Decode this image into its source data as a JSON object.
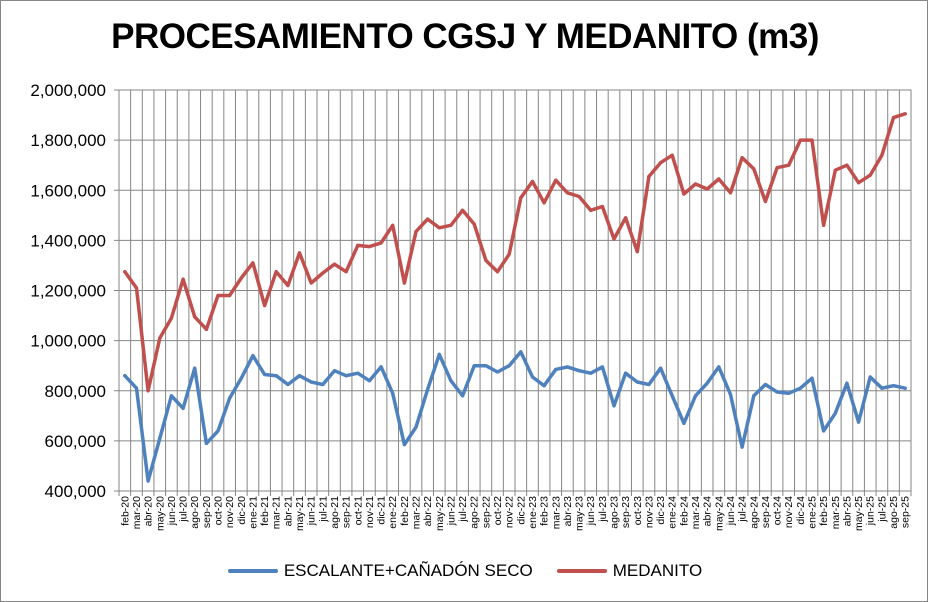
{
  "chart_data": {
    "type": "line",
    "title": "PROCESAMIENTO CGSJ Y MEDANITO (m3)",
    "xlabel": "",
    "ylabel": "",
    "ylim": [
      400000,
      2000000
    ],
    "y_ticks": [
      "400,000",
      "600,000",
      "800,000",
      "1,000,000",
      "1,200,000",
      "1,400,000",
      "1,600,000",
      "1,800,000",
      "2,000,000"
    ],
    "grid": true,
    "legend_position": "bottom",
    "categories": [
      "feb-20",
      "mar-20",
      "abr-20",
      "may-20",
      "jun-20",
      "jul-20",
      "ago-20",
      "sep-20",
      "oct-20",
      "nov-20",
      "dic-20",
      "ene-21",
      "feb-21",
      "mar-21",
      "abr-21",
      "may-21",
      "jun-21",
      "jul-21",
      "ago-21",
      "sep-21",
      "oct-21",
      "nov-21",
      "dic-21",
      "ene-22",
      "feb-22",
      "mar-22",
      "abr-22",
      "may-22",
      "jun-22",
      "jul-22",
      "ago-22",
      "sep-22",
      "oct-22",
      "nov-22",
      "dic-22",
      "ene-23",
      "feb-23",
      "mar-23",
      "abr-23",
      "may-23",
      "jun-23",
      "jul-23",
      "ago-23",
      "sep-23",
      "oct-23",
      "nov-23",
      "dic-23",
      "ene-24",
      "feb-24",
      "mar-24",
      "abr-24",
      "may-24",
      "jun-24",
      "jul-24",
      "ago-24",
      "sep-24",
      "oct-24",
      "nov-24",
      "dic-24",
      "ene-25",
      "feb-25",
      "mar-25",
      "abr-25",
      "may-25",
      "jun-25",
      "jul-25",
      "ago-25",
      "sep-25"
    ],
    "series": [
      {
        "name": "ESCALANTE+CAÑADÓN SECO",
        "color": "#4F81BD",
        "values": [
          860000,
          810000,
          440000,
          610000,
          780000,
          730000,
          890000,
          590000,
          640000,
          770000,
          850000,
          940000,
          865000,
          860000,
          825000,
          860000,
          835000,
          825000,
          880000,
          860000,
          870000,
          840000,
          895000,
          790000,
          585000,
          655000,
          805000,
          945000,
          840000,
          780000,
          900000,
          900000,
          875000,
          900000,
          955000,
          855000,
          820000,
          885000,
          895000,
          880000,
          870000,
          895000,
          740000,
          870000,
          835000,
          825000,
          890000,
          780000,
          670000,
          780000,
          830000,
          895000,
          785000,
          575000,
          780000,
          825000,
          795000,
          790000,
          810000,
          850000,
          640000,
          710000,
          830000,
          675000,
          855000,
          810000,
          820000,
          810000
        ]
      },
      {
        "name": "MEDANITO",
        "color": "#C0504D",
        "values": [
          1275000,
          1210000,
          800000,
          1010000,
          1090000,
          1245000,
          1095000,
          1045000,
          1180000,
          1180000,
          1250000,
          1310000,
          1140000,
          1275000,
          1220000,
          1350000,
          1230000,
          1270000,
          1305000,
          1275000,
          1380000,
          1375000,
          1390000,
          1460000,
          1230000,
          1435000,
          1485000,
          1450000,
          1460000,
          1520000,
          1465000,
          1320000,
          1275000,
          1345000,
          1570000,
          1635000,
          1550000,
          1640000,
          1590000,
          1575000,
          1520000,
          1535000,
          1405000,
          1490000,
          1355000,
          1655000,
          1710000,
          1740000,
          1585000,
          1625000,
          1605000,
          1645000,
          1590000,
          1730000,
          1685000,
          1555000,
          1690000,
          1700000,
          1800000,
          1800000,
          1460000,
          1680000,
          1700000,
          1630000,
          1660000,
          1740000,
          1890000,
          1905000
        ]
      }
    ]
  }
}
